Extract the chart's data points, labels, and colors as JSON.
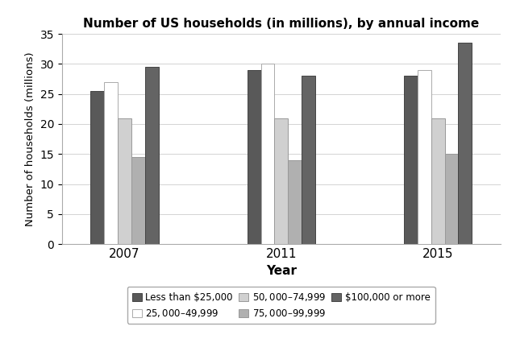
{
  "title": "Number of US households (in millions), by annual income",
  "xlabel": "Year",
  "ylabel": "Number of households (millions)",
  "years": [
    "2007",
    "2011",
    "2015"
  ],
  "categories": [
    "Less than $25,000",
    "$25,000–$49,999",
    "$50,000–$74,999",
    "$75,000–$99,999",
    "$100,000 or more"
  ],
  "values": {
    "Less than $25,000": [
      25.5,
      29.0,
      28.0
    ],
    "$25,000–$49,999": [
      27.0,
      30.0,
      29.0
    ],
    "$50,000–$74,999": [
      21.0,
      21.0,
      21.0
    ],
    "$75,000–$99,999": [
      14.5,
      14.0,
      15.0
    ],
    "$100,000 or more": [
      29.5,
      28.0,
      33.5
    ]
  },
  "colors": [
    "#595959",
    "#ffffff",
    "#d0d0d0",
    "#b0b0b0",
    "#646464"
  ],
  "edgecolors": [
    "#444444",
    "#aaaaaa",
    "#999999",
    "#999999",
    "#444444"
  ],
  "ylim": [
    0,
    35
  ],
  "yticks": [
    0,
    5,
    10,
    15,
    20,
    25,
    30,
    35
  ],
  "bar_width": 0.13,
  "group_centers": [
    1.0,
    2.5,
    4.0
  ],
  "figsize": [
    6.4,
    4.21
  ],
  "dpi": 100,
  "background_color": "#ffffff"
}
